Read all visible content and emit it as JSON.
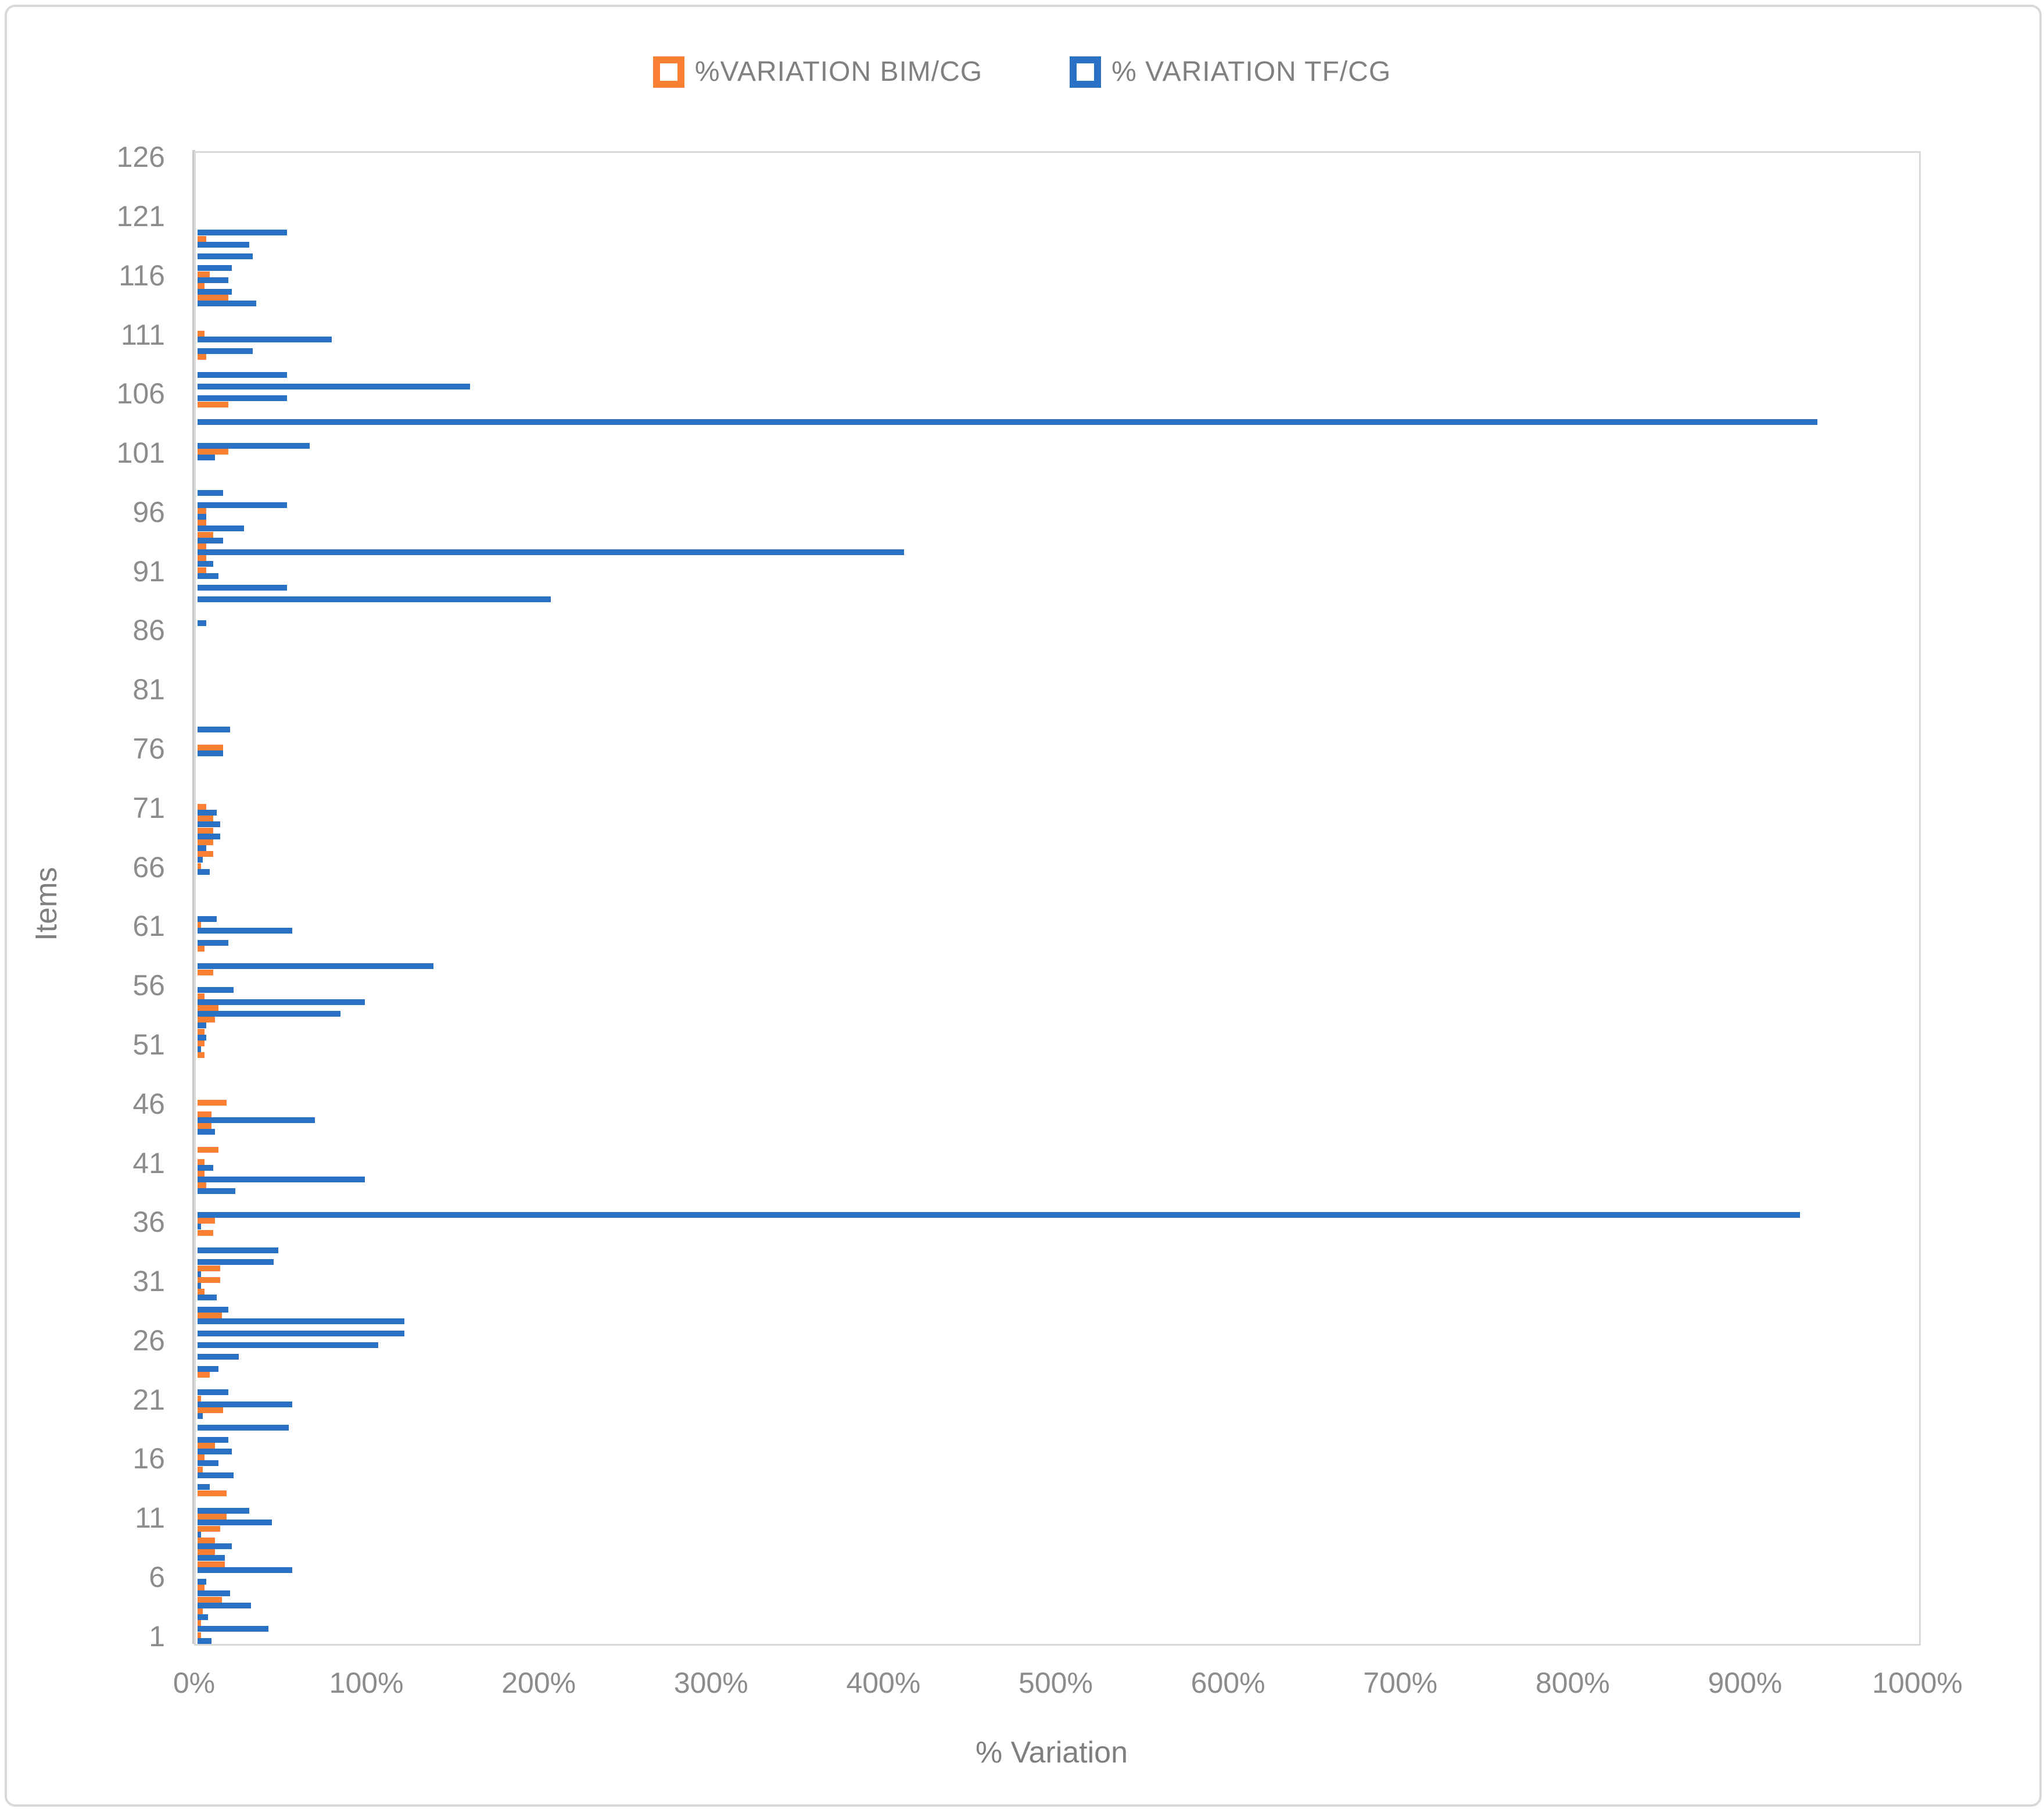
{
  "chart_data": {
    "type": "bar",
    "orientation": "horizontal",
    "title": "",
    "xlabel": "% Variation",
    "ylabel": "Items",
    "xlim": [
      0,
      1000
    ],
    "x_tick_labels": [
      "0%",
      "100%",
      "200%",
      "300%",
      "400%",
      "500%",
      "600%",
      "700%",
      "800%",
      "900%",
      "1000%"
    ],
    "y_tick_labels": [
      1,
      6,
      11,
      16,
      21,
      26,
      31,
      36,
      41,
      46,
      51,
      56,
      61,
      66,
      71,
      76,
      81,
      86,
      91,
      96,
      101,
      106,
      111,
      116,
      121,
      126
    ],
    "categories_note": "Items numbered 1 (bottom) to 126 (top)",
    "grid": false,
    "legend_position": "top",
    "series": [
      {
        "name": "%VARIATION BIM/CG",
        "color": "#FB8033",
        "values": [
          2,
          2,
          3,
          14,
          4,
          0,
          16,
          10,
          10,
          13,
          17,
          0,
          17,
          0,
          3,
          4,
          10,
          0,
          0,
          15,
          2,
          0,
          7,
          0,
          0,
          0,
          0,
          14,
          0,
          4,
          13,
          13,
          0,
          0,
          9,
          10,
          0,
          0,
          5,
          4,
          4,
          12,
          0,
          8,
          8,
          17,
          0,
          0,
          0,
          4,
          4,
          4,
          10,
          12,
          4,
          0,
          9,
          0,
          4,
          0,
          2,
          0,
          0,
          0,
          0,
          2,
          9,
          9,
          9,
          9,
          5,
          0,
          0,
          0,
          0,
          15,
          0,
          0,
          0,
          0,
          0,
          0,
          0,
          0,
          0,
          0,
          0,
          0,
          0,
          0,
          5,
          5,
          5,
          9,
          5,
          5,
          0,
          0,
          0,
          0,
          18,
          0,
          0,
          0,
          18,
          0,
          0,
          0,
          5,
          0,
          4,
          0,
          0,
          18,
          4,
          7,
          0,
          0,
          5,
          0,
          0,
          0,
          0,
          0,
          0,
          0
        ]
      },
      {
        "name": "% VARIATION TF/CG",
        "color": "#2871C4",
        "values": [
          8,
          41,
          6,
          31,
          19,
          5,
          55,
          16,
          20,
          2,
          43,
          30,
          0,
          7,
          21,
          12,
          20,
          18,
          53,
          3,
          55,
          18,
          0,
          12,
          24,
          105,
          120,
          120,
          18,
          11,
          2,
          2,
          44,
          47,
          0,
          2,
          930,
          0,
          22,
          97,
          9,
          0,
          0,
          10,
          68,
          0,
          0,
          0,
          0,
          0,
          2,
          5,
          5,
          83,
          97,
          21,
          0,
          137,
          0,
          18,
          55,
          11,
          0,
          0,
          0,
          7,
          3,
          5,
          13,
          13,
          11,
          0,
          0,
          0,
          0,
          15,
          0,
          19,
          0,
          0,
          0,
          0,
          0,
          0,
          0,
          0,
          5,
          0,
          205,
          52,
          12,
          9,
          410,
          15,
          27,
          5,
          52,
          15,
          0,
          0,
          10,
          65,
          0,
          940,
          0,
          52,
          158,
          52,
          0,
          32,
          78,
          0,
          0,
          34,
          20,
          18,
          20,
          32,
          30,
          52,
          0,
          0,
          0,
          0,
          0,
          0
        ]
      }
    ]
  }
}
